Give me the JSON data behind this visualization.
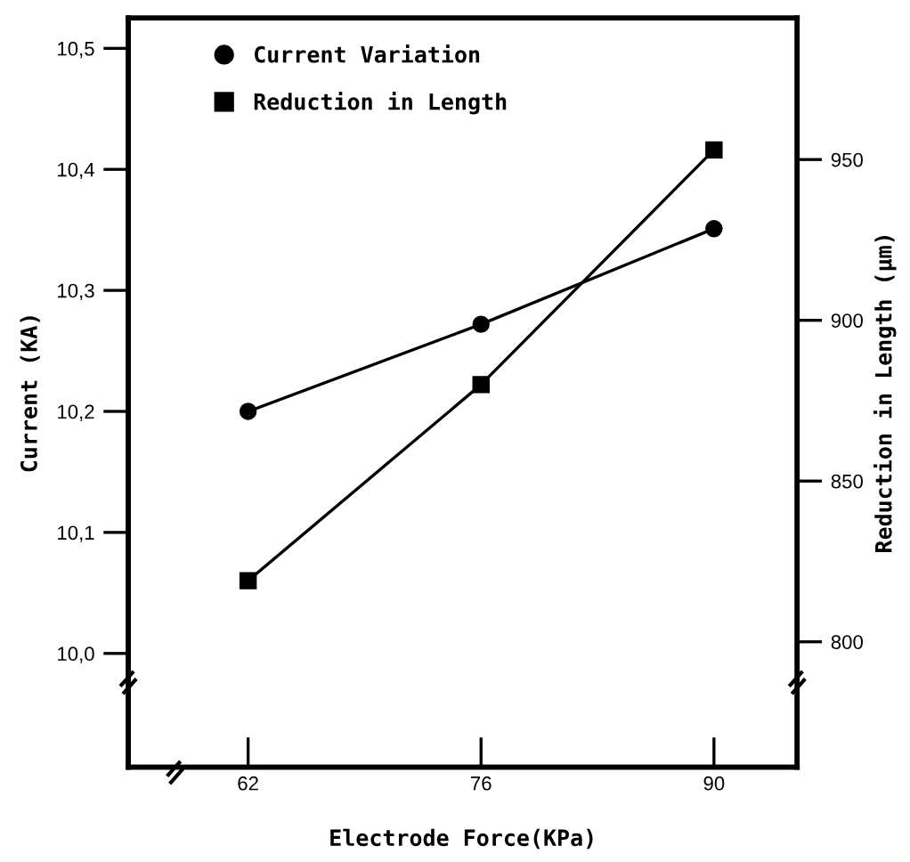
{
  "chart_data": {
    "type": "line",
    "xlabel": "Electrode Force(KPa)",
    "ylabel": "Current (KA)",
    "y2label": "Reduction in Length (μm)",
    "x": [
      62,
      76,
      90
    ],
    "series": [
      {
        "name": "Current Variation",
        "color": "#000000",
        "marker": "circle",
        "values": [
          10.2,
          10.272,
          10.351
        ]
      },
      {
        "name": "Reduction in Length",
        "color": "#000000",
        "marker": "square",
        "axis": "y2",
        "values": [
          819,
          880,
          953
        ]
      }
    ],
    "xlim": [
      54.8,
      95
    ],
    "xticks": [
      62,
      76,
      90
    ],
    "ylim": [
      9.906,
      10.525
    ],
    "yticks": [
      {
        "value": 10.0,
        "label": "10,0"
      },
      {
        "value": 10.1,
        "label": "10,1"
      },
      {
        "value": 10.2,
        "label": "10,2"
      },
      {
        "value": 10.3,
        "label": "10,3"
      },
      {
        "value": 10.4,
        "label": "10,4"
      },
      {
        "value": 10.5,
        "label": "10,5"
      }
    ],
    "y2lim": [
      761,
      994
    ],
    "y2ticks": [
      800,
      850,
      900,
      950
    ],
    "grid": false,
    "legend": "top left",
    "line_style": "solid"
  }
}
